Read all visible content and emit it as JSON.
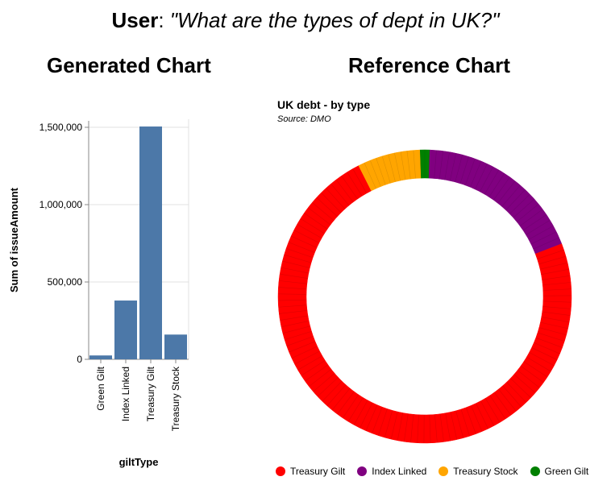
{
  "query": {
    "speaker": "User",
    "separator": ": ",
    "text": "\"What are the types of dept in UK?\""
  },
  "left_heading": "Generated Chart",
  "right_heading": "Reference Chart",
  "chart_data": [
    {
      "type": "bar",
      "categories": [
        "Green Gilt",
        "Index Linked",
        "Treasury Gilt",
        "Treasury Stock"
      ],
      "values": [
        25000,
        380000,
        1505000,
        160000
      ],
      "xlabel": "giltType",
      "ylabel": "Sum of issueAmount",
      "ylim": [
        0,
        1500000
      ],
      "yticks": [
        0,
        500000,
        1000000,
        1500000
      ],
      "ytick_labels": [
        "0",
        "500,000",
        "1,000,000",
        "1,500,000"
      ],
      "bar_color": "#4c78a8",
      "grid": true
    },
    {
      "type": "pie",
      "title": "UK debt - by type",
      "subtitle": "Source: DMO",
      "donut": true,
      "categories": [
        "Treasury Gilt",
        "Index Linked",
        "Treasury Stock",
        "Green Gilt"
      ],
      "values": [
        73.4,
        18.6,
        6.9,
        1.1
      ],
      "colors": [
        "#ff0000",
        "#800080",
        "#ffa500",
        "#008000"
      ],
      "legend_position": "bottom"
    }
  ]
}
